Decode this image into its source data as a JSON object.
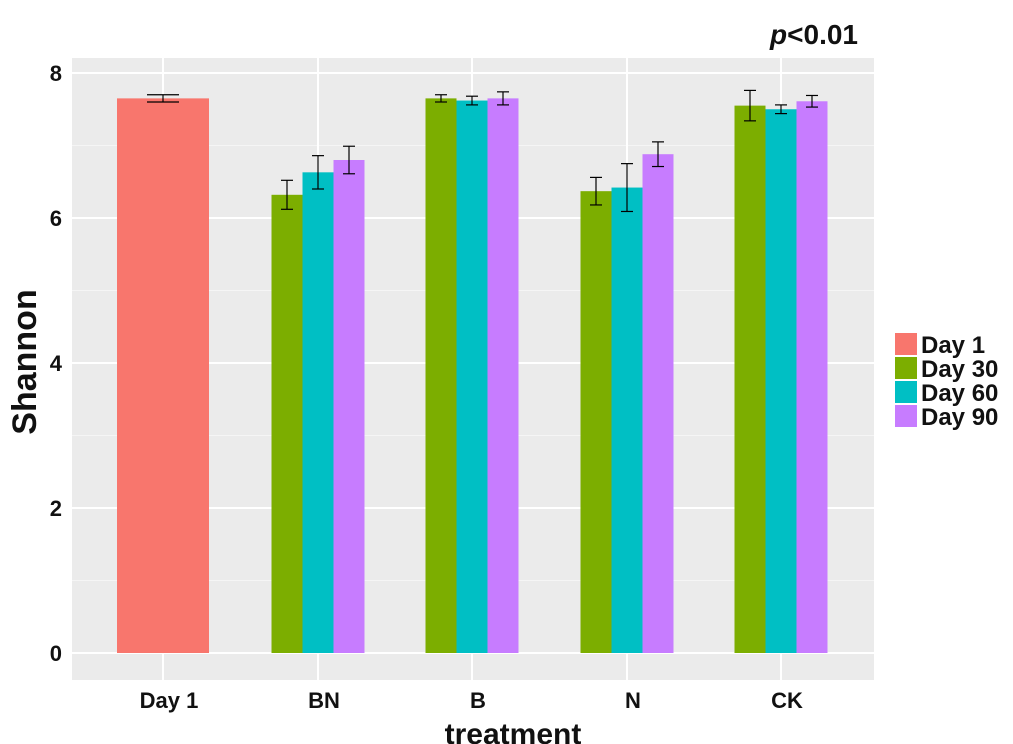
{
  "chart_data": {
    "type": "bar",
    "annotation": {
      "prefix": "p",
      "text": "<0.01"
    },
    "xlabel": "treatment",
    "ylabel": "Shannon",
    "ylim": [
      0,
      8
    ],
    "yticks": [
      0,
      2,
      4,
      6,
      8
    ],
    "grid": true,
    "legend_position": "right",
    "categories": [
      "Day 1",
      "BN",
      "B",
      "N",
      "CK"
    ],
    "series": [
      {
        "name": "Day 1",
        "color": "#F8766D",
        "values": [
          7.65,
          null,
          null,
          null,
          null
        ],
        "errors": [
          0.05,
          null,
          null,
          null,
          null
        ]
      },
      {
        "name": "Day 30",
        "color": "#7CAE00",
        "values": [
          null,
          6.32,
          7.65,
          6.37,
          7.55
        ],
        "errors": [
          null,
          0.2,
          0.05,
          0.19,
          0.21
        ]
      },
      {
        "name": "Day 60",
        "color": "#00BFC4",
        "values": [
          null,
          6.63,
          7.62,
          6.42,
          7.5
        ],
        "errors": [
          null,
          0.23,
          0.06,
          0.33,
          0.06
        ]
      },
      {
        "name": "Day 90",
        "color": "#C77CFF",
        "values": [
          null,
          6.8,
          7.65,
          6.88,
          7.61
        ],
        "errors": [
          null,
          0.19,
          0.09,
          0.17,
          0.08
        ]
      }
    ]
  }
}
